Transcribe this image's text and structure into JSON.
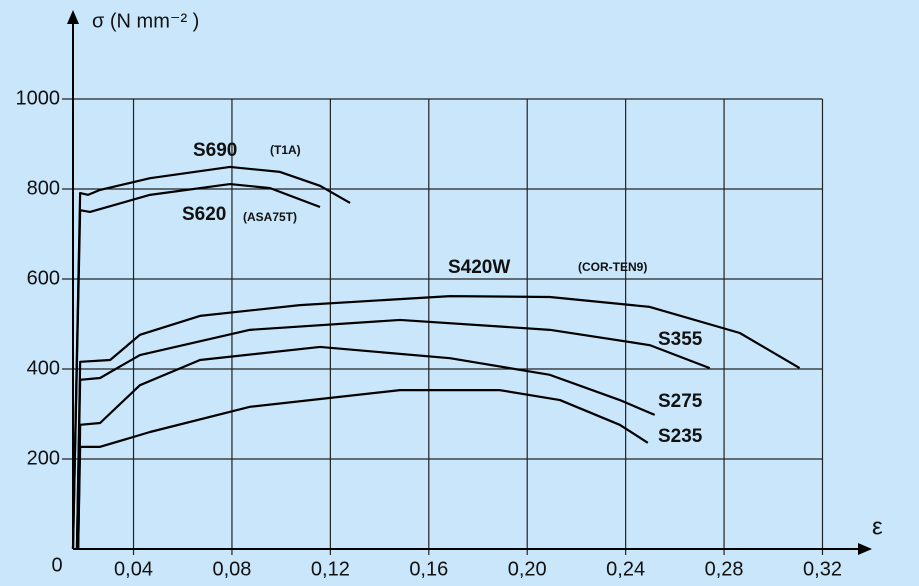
{
  "chart_data": {
    "type": "line",
    "y_label": "σ (N mm⁻² )",
    "x_label": "ε",
    "origin_label": "0",
    "xlim": [
      0.0154,
      0.345
    ],
    "ylim": [
      0,
      1180
    ],
    "xticks": [
      {
        "value": 0.04,
        "label": "0,04"
      },
      {
        "value": 0.08,
        "label": "0,08"
      },
      {
        "value": 0.12,
        "label": "0,12"
      },
      {
        "value": 0.16,
        "label": "0,16"
      },
      {
        "value": 0.2,
        "label": "0,20"
      },
      {
        "value": 0.24,
        "label": "0,24"
      },
      {
        "value": 0.28,
        "label": "0,28"
      },
      {
        "value": 0.32,
        "label": "0,32"
      }
    ],
    "yticks": [
      200,
      400,
      600,
      800,
      1000
    ],
    "grid": true,
    "color": "#000000",
    "series": [
      {
        "name": "S690",
        "x": [
          0.0154,
          0.0183,
          0.0215,
          0.0264,
          0.0467,
          0.0792,
          0.0995,
          0.1158,
          0.128
        ],
        "values": [
          0,
          791,
          787,
          798,
          824,
          849,
          838,
          807,
          769
        ]
      },
      {
        "name": "S620",
        "x": [
          0.0154,
          0.0183,
          0.0223,
          0.0467,
          0.0792,
          0.0955,
          0.1158
        ],
        "values": [
          0,
          753,
          749,
          787,
          811,
          802,
          760
        ]
      },
      {
        "name": "S420W",
        "x": [
          0.017,
          0.0183,
          0.0305,
          0.0426,
          0.067,
          0.1076,
          0.1686,
          0.2092,
          0.2498,
          0.2864,
          0.3107
        ],
        "values": [
          0,
          416,
          420,
          476,
          518,
          542,
          562,
          560,
          538,
          480,
          402
        ]
      },
      {
        "name": "S355",
        "x": [
          0.017,
          0.0183,
          0.0264,
          0.0426,
          0.0873,
          0.1483,
          0.2092,
          0.2498,
          0.2742
        ],
        "values": [
          0,
          376,
          380,
          431,
          487,
          509,
          487,
          453,
          402
        ]
      },
      {
        "name": "S275",
        "x": [
          0.0175,
          0.0183,
          0.0264,
          0.0426,
          0.067,
          0.1158,
          0.1686,
          0.2092,
          0.2376,
          0.2518
        ],
        "values": [
          0,
          276,
          280,
          364,
          420,
          449,
          424,
          387,
          331,
          298
        ]
      },
      {
        "name": "S235",
        "x": [
          0.0175,
          0.0183,
          0.0264,
          0.0467,
          0.0873,
          0.1483,
          0.1889,
          0.2133,
          0.2376,
          0.249
        ],
        "values": [
          0,
          227,
          227,
          260,
          316,
          353,
          353,
          331,
          276,
          236
        ]
      }
    ],
    "annotations": [
      "(T1A)",
      "(ASA75T)",
      "(COR-TEN9)"
    ]
  }
}
